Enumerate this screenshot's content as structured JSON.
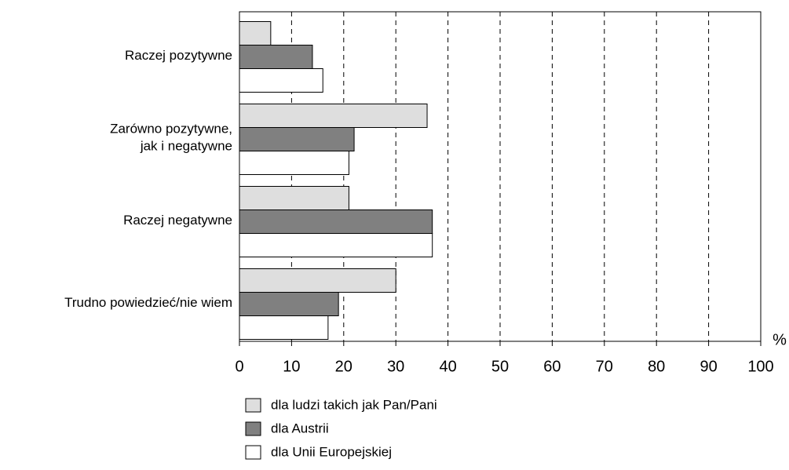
{
  "chart_data": {
    "type": "hbar",
    "categories": [
      "Raczej pozytywne",
      "Zarówno pozytywne,\njak i negatywne",
      "Raczej negatywne",
      "Trudno powiedzieć/nie wiem"
    ],
    "series": [
      {
        "name": "dla ludzi takich jak Pan/Pani",
        "color": "#dedede",
        "values": [
          6,
          36,
          21,
          30
        ]
      },
      {
        "name": "dla Austrii",
        "color": "#808080",
        "values": [
          14,
          22,
          37,
          19
        ]
      },
      {
        "name": "dla Unii Europejskiej",
        "color": "#ffffff",
        "values": [
          16,
          21,
          37,
          17
        ]
      }
    ],
    "xlabel": "%",
    "xlim": [
      0,
      100
    ],
    "xticks": [
      0,
      10,
      20,
      30,
      40,
      50,
      60,
      70,
      80,
      90,
      100
    ],
    "grid": true
  }
}
